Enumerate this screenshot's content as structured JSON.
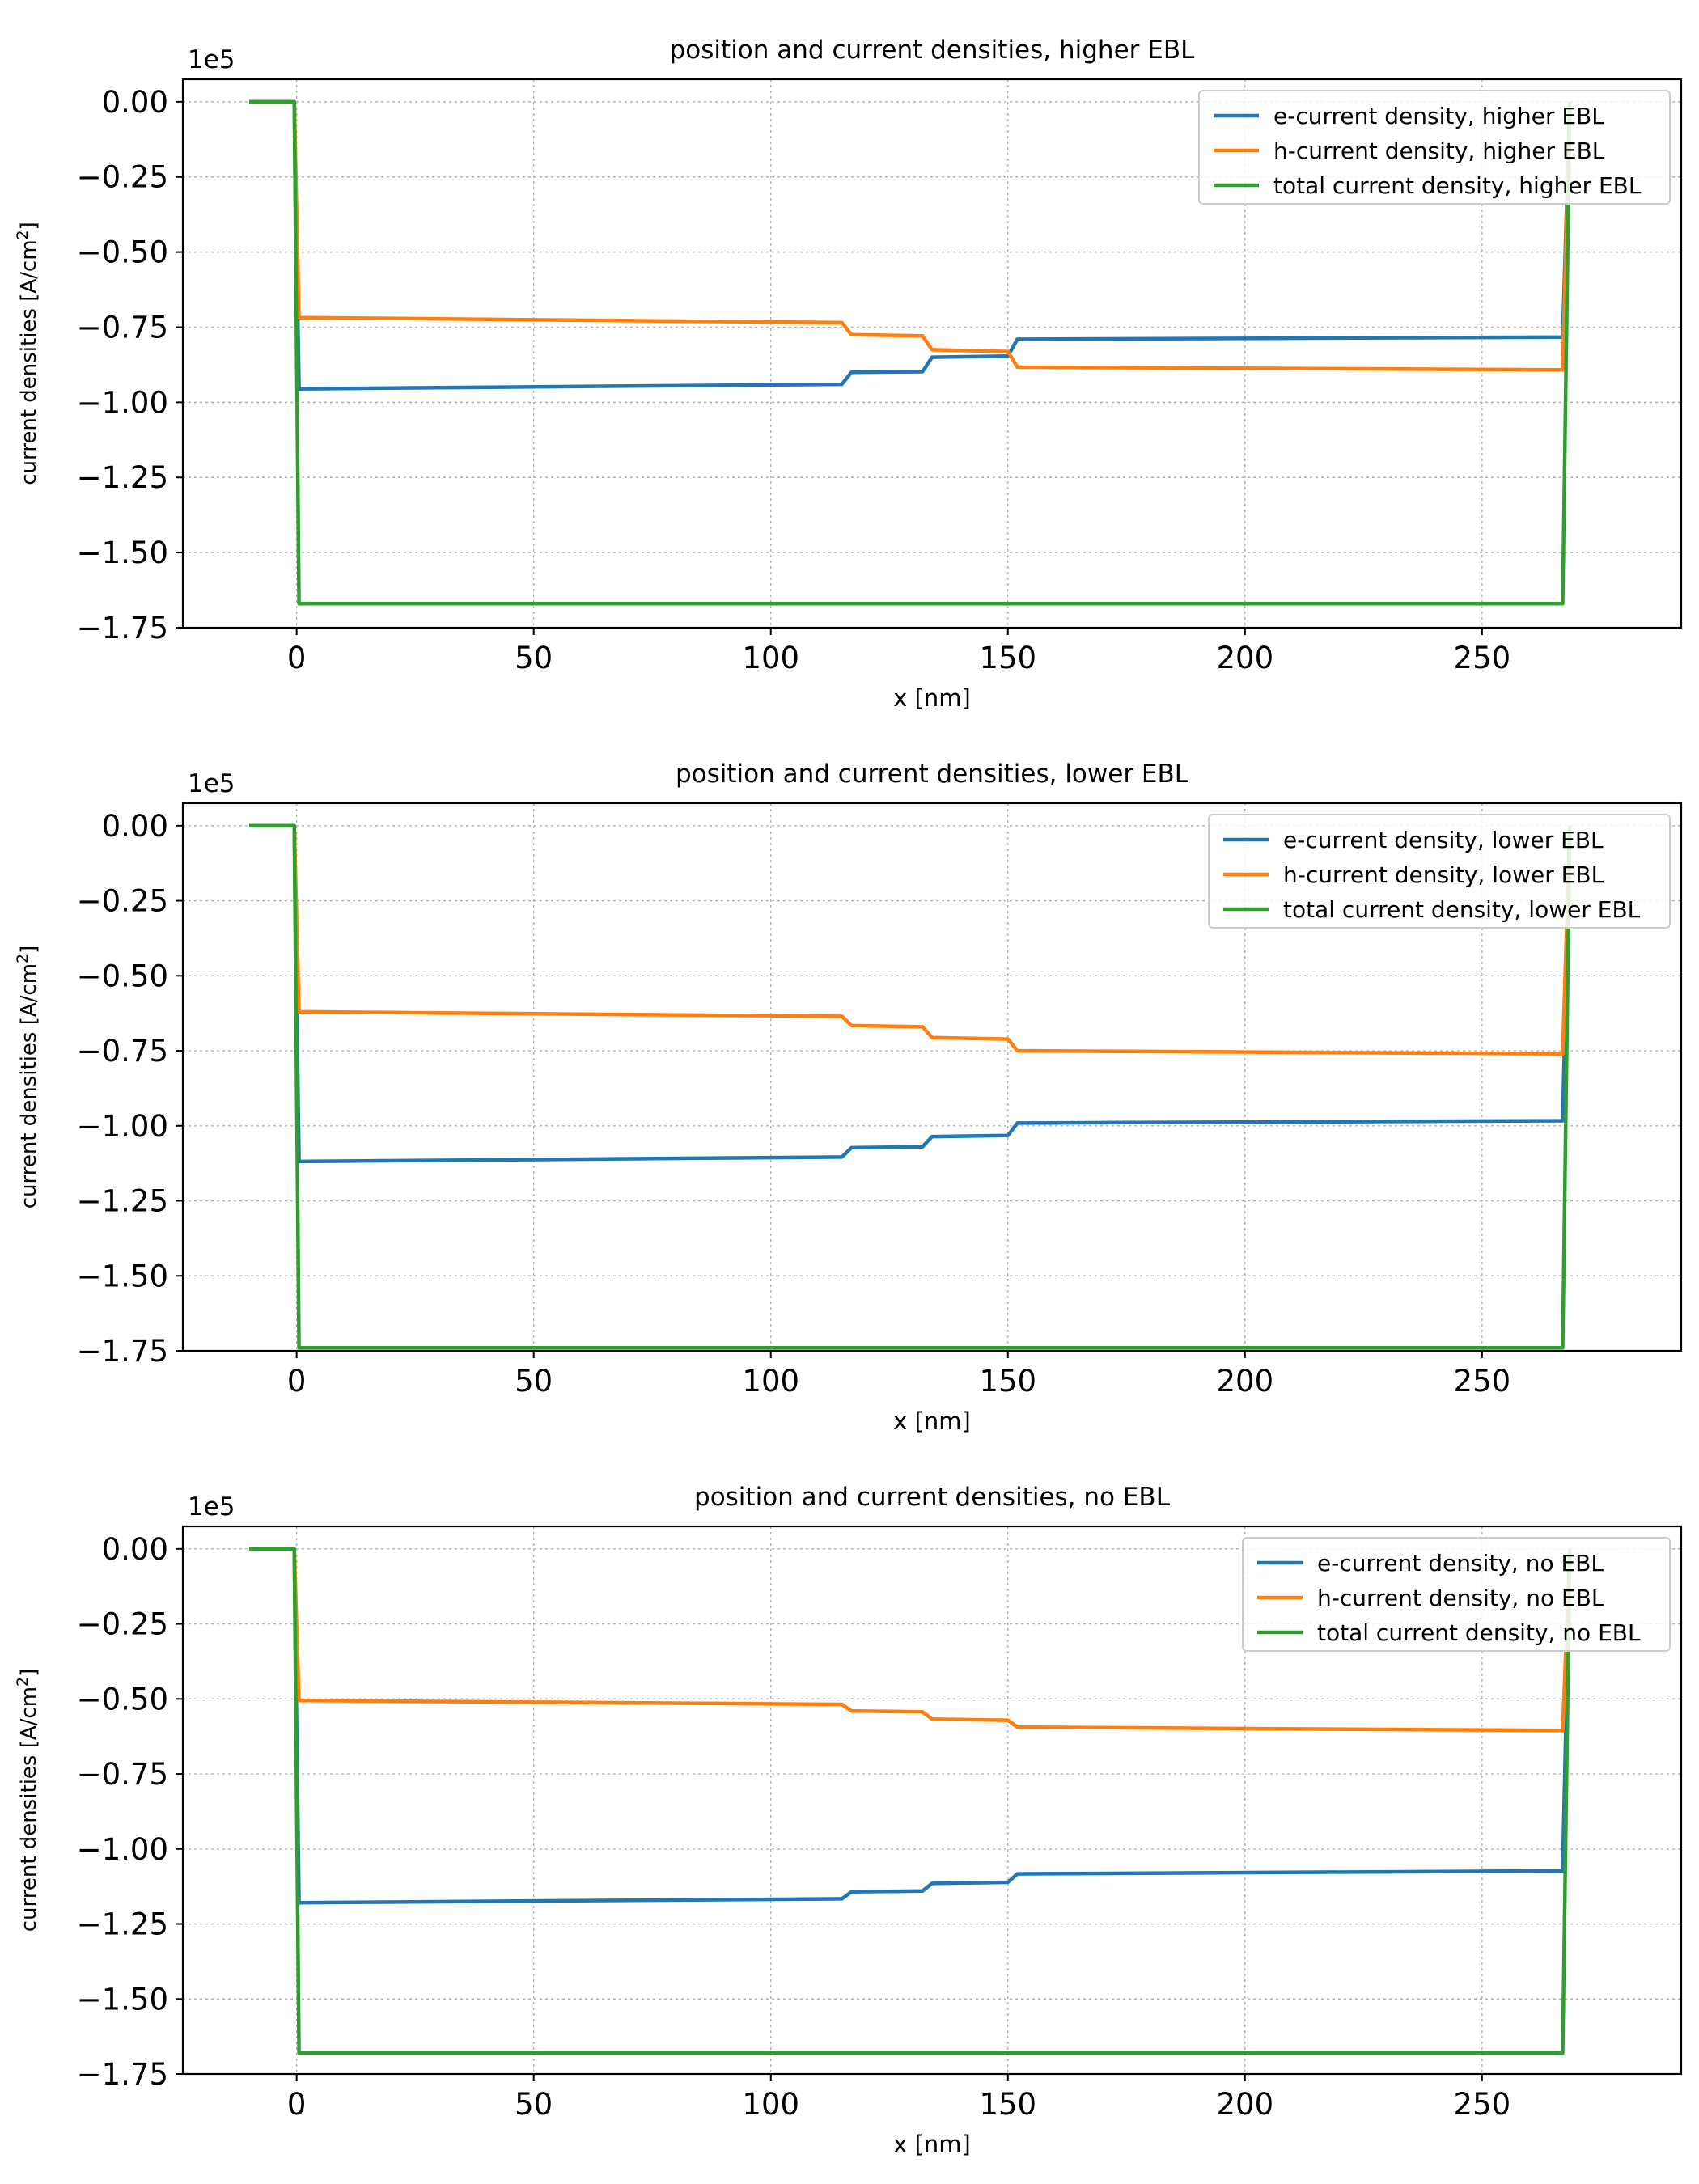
{
  "chart_data": [
    {
      "type": "line",
      "title": "position and current densities, higher EBL",
      "xlabel": "x [nm]",
      "ylabel": "current densities [A/cm",
      "ylabel_sup": "2",
      "ylabel_end": "]",
      "offset_label": "1e5",
      "xlim": [
        -24,
        292
      ],
      "ylim": [
        -175000,
        7500
      ],
      "x_ticks": [
        0,
        50,
        100,
        150,
        200,
        250
      ],
      "x_tick_labels": [
        "0",
        "50",
        "100",
        "150",
        "200",
        "250"
      ],
      "y_ticks": [
        0,
        -25000,
        -50000,
        -75000,
        -100000,
        -125000,
        -150000,
        -175000
      ],
      "y_tick_labels": [
        "0.00",
        "−0.25",
        "−0.50",
        "−0.75",
        "−1.00",
        "−1.25",
        "−1.50",
        "−1.75"
      ],
      "grid": true,
      "legend": "top-right",
      "series": [
        {
          "name": "e-current density, higher EBL",
          "color": "#1f77b4",
          "points": [
            [
              -10,
              0
            ],
            [
              -0.5,
              0
            ],
            [
              0.5,
              -95500
            ],
            [
              115,
              -94000
            ],
            [
              117,
              -90000
            ],
            [
              132,
              -89800
            ],
            [
              134,
              -85000
            ],
            [
              150,
              -84600
            ],
            [
              152,
              -79000
            ],
            [
              267,
              -78300
            ],
            [
              268.5,
              0
            ]
          ]
        },
        {
          "name": "h-current density, higher EBL",
          "color": "#ff7f0e",
          "points": [
            [
              -10,
              0
            ],
            [
              -0.5,
              0
            ],
            [
              0.5,
              -71800
            ],
            [
              115,
              -73500
            ],
            [
              117,
              -77500
            ],
            [
              132,
              -77900
            ],
            [
              134,
              -82500
            ],
            [
              150,
              -83100
            ],
            [
              152,
              -88300
            ],
            [
              267,
              -89200
            ],
            [
              268.5,
              0
            ]
          ]
        },
        {
          "name": "total current density, higher EBL",
          "color": "#2ca02c",
          "points": [
            [
              -10,
              0
            ],
            [
              -0.5,
              0
            ],
            [
              0.5,
              -167000
            ],
            [
              267,
              -167000
            ],
            [
              268.5,
              0
            ]
          ]
        }
      ]
    },
    {
      "type": "line",
      "title": "position and current densities, lower EBL",
      "xlabel": "x [nm]",
      "ylabel": "current densities [A/cm",
      "ylabel_sup": "2",
      "ylabel_end": "]",
      "offset_label": "1e5",
      "xlim": [
        -24,
        292
      ],
      "ylim": [
        -175000,
        7500
      ],
      "x_ticks": [
        0,
        50,
        100,
        150,
        200,
        250
      ],
      "x_tick_labels": [
        "0",
        "50",
        "100",
        "150",
        "200",
        "250"
      ],
      "y_ticks": [
        0,
        -25000,
        -50000,
        -75000,
        -100000,
        -125000,
        -150000,
        -175000
      ],
      "y_tick_labels": [
        "0.00",
        "−0.25",
        "−0.50",
        "−0.75",
        "−1.00",
        "−1.25",
        "−1.50",
        "−1.75"
      ],
      "grid": true,
      "legend": "top-right",
      "series": [
        {
          "name": "e-current density, lower EBL",
          "color": "#1f77b4",
          "points": [
            [
              -10,
              0
            ],
            [
              -0.5,
              0
            ],
            [
              0.5,
              -111900
            ],
            [
              115,
              -110400
            ],
            [
              117,
              -107300
            ],
            [
              132,
              -107000
            ],
            [
              134,
              -103600
            ],
            [
              150,
              -103200
            ],
            [
              152,
              -99100
            ],
            [
              267,
              -98300
            ],
            [
              268.5,
              0
            ]
          ]
        },
        {
          "name": "h-current density, lower EBL",
          "color": "#ff7f0e",
          "points": [
            [
              -10,
              0
            ],
            [
              -0.5,
              0
            ],
            [
              0.5,
              -62000
            ],
            [
              115,
              -63500
            ],
            [
              117,
              -66600
            ],
            [
              132,
              -67000
            ],
            [
              134,
              -70600
            ],
            [
              150,
              -71100
            ],
            [
              152,
              -75000
            ],
            [
              267,
              -76000
            ],
            [
              268.5,
              0
            ]
          ]
        },
        {
          "name": "total current density, lower EBL",
          "color": "#2ca02c",
          "points": [
            [
              -10,
              0
            ],
            [
              -0.5,
              0
            ],
            [
              0.5,
              -174000
            ],
            [
              267,
              -174000
            ],
            [
              268.5,
              0
            ]
          ]
        }
      ]
    },
    {
      "type": "line",
      "title": "position and current densities, no EBL",
      "xlabel": "x [nm]",
      "ylabel": "current densities [A/cm",
      "ylabel_sup": "2",
      "ylabel_end": "]",
      "offset_label": "1e5",
      "xlim": [
        -24,
        292
      ],
      "ylim": [
        -175000,
        7500
      ],
      "x_ticks": [
        0,
        50,
        100,
        150,
        200,
        250
      ],
      "x_tick_labels": [
        "0",
        "50",
        "100",
        "150",
        "200",
        "250"
      ],
      "y_ticks": [
        0,
        -25000,
        -50000,
        -75000,
        -100000,
        -125000,
        -150000,
        -175000
      ],
      "y_tick_labels": [
        "0.00",
        "−0.25",
        "−0.50",
        "−0.75",
        "−1.00",
        "−1.25",
        "−1.50",
        "−1.75"
      ],
      "grid": true,
      "legend": "top-right",
      "series": [
        {
          "name": "e-current density, no EBL",
          "color": "#1f77b4",
          "points": [
            [
              -10,
              0
            ],
            [
              -0.5,
              0
            ],
            [
              0.5,
              -117900
            ],
            [
              115,
              -116600
            ],
            [
              117,
              -114300
            ],
            [
              132,
              -114000
            ],
            [
              134,
              -111500
            ],
            [
              150,
              -111100
            ],
            [
              152,
              -108300
            ],
            [
              267,
              -107300
            ],
            [
              268.5,
              0
            ]
          ]
        },
        {
          "name": "h-current density, no EBL",
          "color": "#ff7f0e",
          "points": [
            [
              -10,
              0
            ],
            [
              -0.5,
              0
            ],
            [
              0.5,
              -50500
            ],
            [
              115,
              -51800
            ],
            [
              117,
              -54000
            ],
            [
              132,
              -54300
            ],
            [
              134,
              -56700
            ],
            [
              150,
              -57100
            ],
            [
              152,
              -59400
            ],
            [
              267,
              -60500
            ],
            [
              268.5,
              0
            ]
          ]
        },
        {
          "name": "total current density, no EBL",
          "color": "#2ca02c",
          "points": [
            [
              -10,
              0
            ],
            [
              -0.5,
              0
            ],
            [
              0.5,
              -168000
            ],
            [
              267,
              -168000
            ],
            [
              268.5,
              0
            ]
          ]
        }
      ]
    }
  ]
}
